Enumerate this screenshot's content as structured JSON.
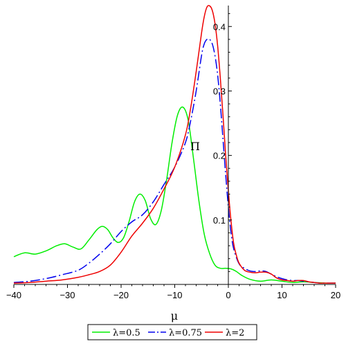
{
  "chart_data": {
    "type": "line",
    "title": "",
    "xlabel": "μ",
    "ylabel": "Π",
    "xlim": [
      -40,
      20
    ],
    "ylim": [
      0,
      0.44
    ],
    "xticks": [
      -40,
      -30,
      -20,
      -10,
      0,
      10,
      20
    ],
    "xtick_labels": [
      "−40",
      "−30",
      "−20",
      "−10",
      "0",
      "10",
      "20"
    ],
    "yticks": [
      0.1,
      0.2,
      0.3,
      0.4
    ],
    "ytick_labels": [
      "0.1",
      "0.2",
      "0.3",
      "0.4"
    ],
    "grid": false,
    "legend_position": "bottom",
    "series": [
      {
        "name": "λ=0.5",
        "color": "#00ee00",
        "dash": "solid",
        "x": [
          -40,
          -38,
          -36,
          -34,
          -32,
          -30.5,
          -29,
          -27.5,
          -26,
          -24.5,
          -23.5,
          -22.5,
          -21.5,
          -20.5,
          -19.5,
          -18.5,
          -17.5,
          -16.5,
          -15.5,
          -14.5,
          -13.5,
          -12.5,
          -11.5,
          -10.5,
          -9.5,
          -8.5,
          -7.5,
          -6.5,
          -5.5,
          -4.5,
          -3.5,
          -2.5,
          -1.5,
          -0.5,
          0.5,
          1.5,
          2.5,
          4,
          6,
          8,
          10,
          12,
          14,
          16,
          18,
          20
        ],
        "y": [
          0.043,
          0.049,
          0.047,
          0.052,
          0.06,
          0.063,
          0.058,
          0.055,
          0.069,
          0.085,
          0.09,
          0.085,
          0.072,
          0.065,
          0.073,
          0.098,
          0.128,
          0.14,
          0.13,
          0.102,
          0.093,
          0.115,
          0.163,
          0.22,
          0.262,
          0.275,
          0.255,
          0.195,
          0.13,
          0.078,
          0.048,
          0.03,
          0.025,
          0.025,
          0.024,
          0.02,
          0.014,
          0.008,
          0.005,
          0.007,
          0.005,
          0.003,
          0.004,
          0.003,
          0.002,
          0.002
        ]
      },
      {
        "name": "λ=0.75",
        "color": "#0000ee",
        "dash": "longdash",
        "x": [
          -40,
          -37,
          -34,
          -31,
          -28,
          -26,
          -24,
          -22,
          -20,
          -18,
          -16,
          -14,
          -12,
          -10,
          -8,
          -7,
          -6,
          -5,
          -4.5,
          -4,
          -3.5,
          -3,
          -2.5,
          -2,
          -1.5,
          -1,
          -0.5,
          0,
          0.5,
          1,
          2,
          3,
          4,
          5,
          6,
          7,
          8,
          9,
          10,
          11,
          12,
          13,
          14,
          15,
          16,
          17,
          18,
          20
        ],
        "y": [
          0.003,
          0.005,
          0.009,
          0.015,
          0.022,
          0.033,
          0.047,
          0.063,
          0.082,
          0.097,
          0.108,
          0.128,
          0.155,
          0.182,
          0.22,
          0.255,
          0.3,
          0.355,
          0.373,
          0.38,
          0.38,
          0.373,
          0.355,
          0.325,
          0.28,
          0.225,
          0.17,
          0.12,
          0.08,
          0.055,
          0.032,
          0.025,
          0.021,
          0.02,
          0.021,
          0.02,
          0.016,
          0.012,
          0.009,
          0.007,
          0.006,
          0.006,
          0.005,
          0.004,
          0.003,
          0.002,
          0.002,
          0.002
        ]
      },
      {
        "name": "λ=2",
        "color": "#ee0000",
        "dash": "solid",
        "x": [
          -40,
          -37,
          -34,
          -31,
          -28,
          -26,
          -24,
          -22,
          -20,
          -18,
          -16,
          -14,
          -12,
          -10,
          -8,
          -7,
          -6,
          -5,
          -4.5,
          -4,
          -3.5,
          -3,
          -2.5,
          -2,
          -1.5,
          -1,
          -0.5,
          0,
          0.5,
          1,
          1.5,
          2,
          3,
          4,
          5,
          6,
          7,
          8,
          9,
          10,
          11,
          12,
          13,
          14,
          15,
          16,
          17,
          18,
          20
        ],
        "y": [
          0.002,
          0.003,
          0.005,
          0.007,
          0.011,
          0.015,
          0.02,
          0.03,
          0.05,
          0.075,
          0.095,
          0.118,
          0.148,
          0.182,
          0.232,
          0.275,
          0.33,
          0.39,
          0.415,
          0.43,
          0.432,
          0.425,
          0.405,
          0.37,
          0.32,
          0.262,
          0.2,
          0.145,
          0.098,
          0.063,
          0.045,
          0.033,
          0.022,
          0.019,
          0.018,
          0.019,
          0.019,
          0.016,
          0.01,
          0.007,
          0.006,
          0.005,
          0.006,
          0.006,
          0.004,
          0.003,
          0.002,
          0.002,
          0.002
        ]
      }
    ]
  }
}
